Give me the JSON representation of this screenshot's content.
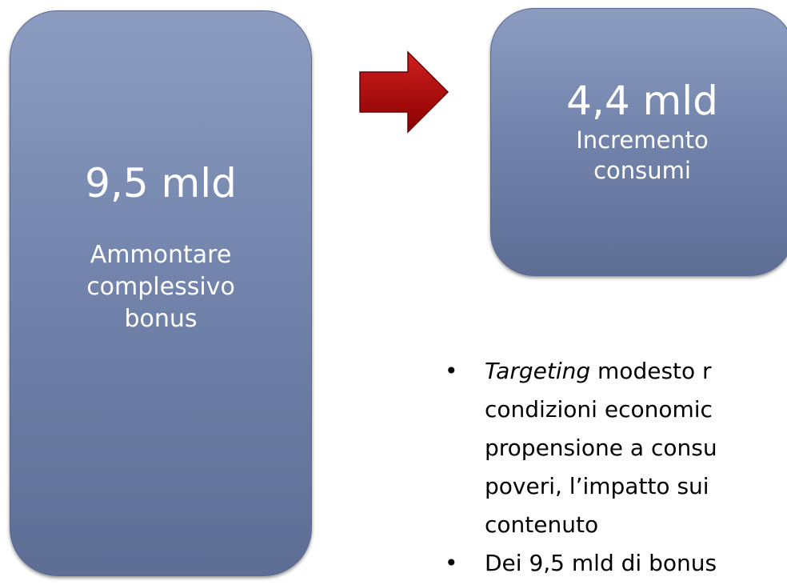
{
  "boxes": [
    {
      "value": "9,5 mld",
      "label": [
        "Ammontare",
        "complessivo",
        "bonus"
      ]
    },
    {
      "value": "4,4 mld",
      "label": [
        "Incremento",
        "consumi"
      ]
    }
  ],
  "bullets": [
    {
      "emphasis": "Targeting",
      "lines": [
        "modesto r",
        "condizioni economic",
        "propensione a consu",
        "poveri, l’impatto sui",
        "contenuto"
      ]
    },
    {
      "emphasis": "",
      "lines": [
        "Dei 9,5 mld di bonus"
      ]
    }
  ]
}
